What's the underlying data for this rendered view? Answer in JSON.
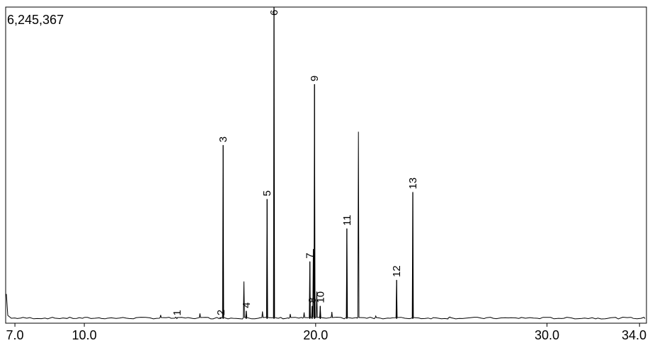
{
  "chart_data": {
    "type": "line",
    "title": "",
    "xlabel": "",
    "ylabel": "",
    "y_max_label": "6,245,367",
    "xlim": [
      6.6,
      34.3
    ],
    "ylim": [
      0,
      6245367
    ],
    "x_ticks": [
      {
        "value": 7.0,
        "label": "7.0"
      },
      {
        "value": 10.0,
        "label": "10.0"
      },
      {
        "value": 20.0,
        "label": "20.0"
      },
      {
        "value": 30.0,
        "label": "30.0"
      },
      {
        "value": 34.0,
        "label": "34.0"
      }
    ],
    "peaks": [
      {
        "label": "1",
        "x": 14.0,
        "y": 8000
      },
      {
        "label": "2",
        "x": 15.9,
        "y": 12000
      },
      {
        "label": "3",
        "x": 16.0,
        "y": 3480000
      },
      {
        "label": "4",
        "x": 17.0,
        "y": 160000
      },
      {
        "label": "5",
        "x": 17.9,
        "y": 2400000
      },
      {
        "label": "6",
        "x": 18.2,
        "y": 6245367
      },
      {
        "label": "7",
        "x": 19.75,
        "y": 1150000
      },
      {
        "label": "8",
        "x": 19.85,
        "y": 260000
      },
      {
        "label": "9",
        "x": 19.95,
        "y": 4700000
      },
      {
        "label": "10",
        "x": 20.2,
        "y": 260000
      },
      {
        "label": "11",
        "x": 21.35,
        "y": 1810000
      },
      {
        "label": "12",
        "x": 23.5,
        "y": 780000
      },
      {
        "label": "13",
        "x": 24.2,
        "y": 2540000
      }
    ],
    "unlabeled_peaks": [
      {
        "x": 6.65,
        "y": 500000
      },
      {
        "x": 16.9,
        "y": 750000
      },
      {
        "x": 21.85,
        "y": 3750000
      },
      {
        "x": 19.9,
        "y": 1400000
      },
      {
        "x": 20.05,
        "y": 550000
      },
      {
        "x": 17.7,
        "y": 150000
      },
      {
        "x": 18.9,
        "y": 100000
      },
      {
        "x": 19.5,
        "y": 130000
      },
      {
        "x": 20.7,
        "y": 140000
      },
      {
        "x": 13.3,
        "y": 80000
      },
      {
        "x": 15.0,
        "y": 110000
      },
      {
        "x": 22.6,
        "y": 60000
      },
      {
        "x": 25.8,
        "y": 40000
      },
      {
        "x": 28.9,
        "y": 30000
      }
    ]
  }
}
